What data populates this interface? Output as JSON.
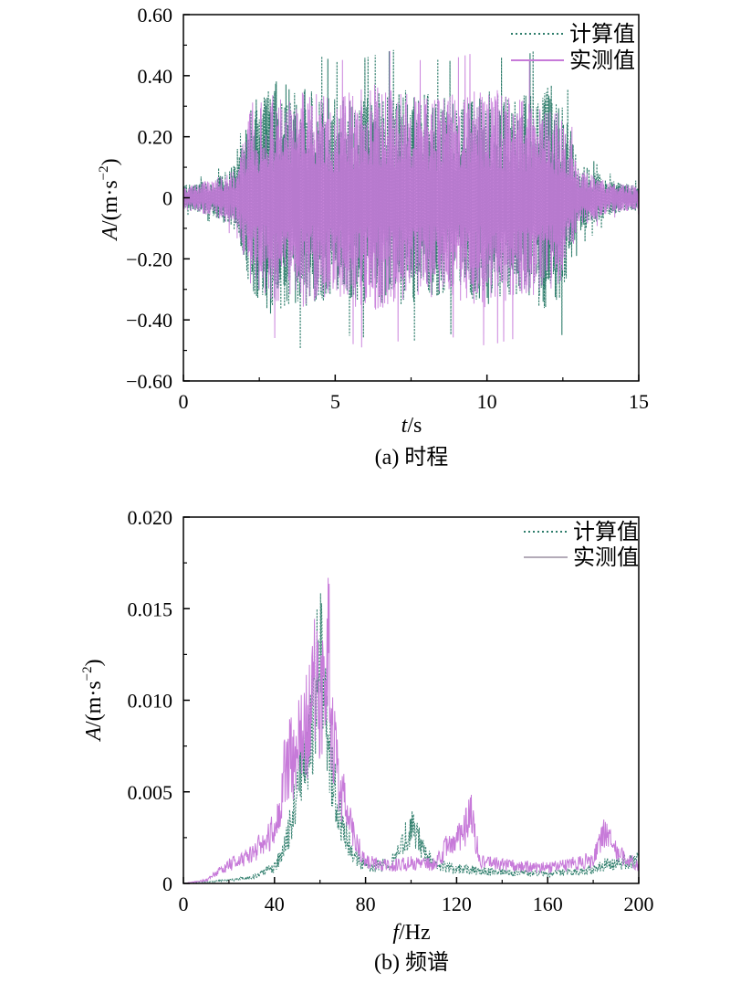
{
  "colors": {
    "calc": "#2e7d6b",
    "meas": "#c77ad9",
    "axis": "#000000"
  },
  "chart_data": [
    {
      "type": "line",
      "caption": "(a) 时程",
      "xlabel_var": "t",
      "xlabel_unit": "/s",
      "ylabel_var": "A",
      "ylabel_unit": "/(m·s",
      "ylabel_exp": "−2",
      "ylabel_close": ")",
      "xlim": [
        0,
        15
      ],
      "ylim": [
        -0.6,
        0.6
      ],
      "xticks": [
        0,
        5,
        10,
        15
      ],
      "xtick_labels": [
        "0",
        "5",
        "10",
        "15"
      ],
      "yticks": [
        0.6,
        0.4,
        0.2,
        0,
        -0.2,
        -0.4,
        -0.6
      ],
      "ytick_labels": [
        "0.60",
        "0.40",
        "0.20",
        "0",
        "−0.20",
        "−0.40",
        "−0.60"
      ],
      "legend_position": "top-right",
      "series": [
        {
          "name": "计算值",
          "style": "dotted",
          "envelope_x": [
            0,
            1,
            1.8,
            2.2,
            3,
            4,
            5,
            6,
            7,
            8,
            9,
            10,
            11,
            12,
            12.5,
            13,
            14,
            15
          ],
          "envelope_amp": [
            0.04,
            0.06,
            0.12,
            0.3,
            0.4,
            0.36,
            0.33,
            0.34,
            0.36,
            0.34,
            0.33,
            0.35,
            0.33,
            0.38,
            0.33,
            0.12,
            0.06,
            0.04
          ],
          "max_abs": 0.51
        },
        {
          "name": "实测值",
          "style": "solid",
          "envelope_x": [
            0,
            1,
            1.8,
            2.2,
            3,
            4,
            5,
            6,
            7,
            8,
            9,
            10,
            11,
            12,
            12.5,
            13,
            14,
            15
          ],
          "envelope_amp": [
            0.04,
            0.06,
            0.1,
            0.32,
            0.34,
            0.36,
            0.32,
            0.38,
            0.35,
            0.33,
            0.34,
            0.36,
            0.34,
            0.32,
            0.28,
            0.1,
            0.05,
            0.04
          ],
          "max_abs": 0.49
        }
      ]
    },
    {
      "type": "line",
      "caption": "(b) 频谱",
      "xlabel_var": "f",
      "xlabel_unit": "/Hz",
      "ylabel_var": "A",
      "ylabel_unit": "/(m·s",
      "ylabel_exp": "−2",
      "ylabel_close": ")",
      "xlim": [
        0,
        200
      ],
      "ylim": [
        0,
        0.02
      ],
      "xticks": [
        0,
        40,
        80,
        120,
        160,
        200
      ],
      "xtick_labels": [
        "0",
        "40",
        "80",
        "120",
        "160",
        "200"
      ],
      "yticks": [
        0.02,
        0.015,
        0.01,
        0.005,
        0
      ],
      "ytick_labels": [
        "0.020",
        "0.015",
        "0.010",
        "0.005",
        "0"
      ],
      "legend_position": "top-right",
      "series": [
        {
          "name": "计算值",
          "style": "dotted",
          "x": [
            0,
            10,
            20,
            30,
            40,
            45,
            50,
            55,
            58,
            60,
            62,
            65,
            70,
            75,
            80,
            90,
            95,
            98,
            100,
            102,
            105,
            110,
            120,
            125,
            130,
            140,
            160,
            180,
            185,
            200
          ],
          "y": [
            0,
            0.0001,
            0.0002,
            0.0004,
            0.001,
            0.0025,
            0.006,
            0.0085,
            0.012,
            0.0162,
            0.011,
            0.0075,
            0.0035,
            0.0018,
            0.0011,
            0.0012,
            0.002,
            0.0032,
            0.0035,
            0.0032,
            0.0022,
            0.0012,
            0.0009,
            0.0009,
            0.0008,
            0.0007,
            0.0006,
            0.0009,
            0.0012,
            0.0015
          ]
        },
        {
          "name": "实测值",
          "style": "solid",
          "x": [
            0,
            10,
            20,
            30,
            40,
            45,
            50,
            55,
            58,
            60,
            62,
            64,
            65,
            70,
            75,
            80,
            90,
            100,
            110,
            118,
            122,
            125,
            127,
            130,
            140,
            160,
            180,
            185,
            190,
            200
          ],
          "y": [
            0,
            0.0002,
            0.0012,
            0.0018,
            0.0035,
            0.0075,
            0.0085,
            0.0105,
            0.0135,
            0.012,
            0.0125,
            0.0155,
            0.0095,
            0.0055,
            0.0028,
            0.0015,
            0.0011,
            0.0013,
            0.0012,
            0.0028,
            0.003,
            0.004,
            0.0043,
            0.0015,
            0.0012,
            0.001,
            0.0015,
            0.0032,
            0.002,
            0.0012
          ]
        }
      ]
    }
  ]
}
